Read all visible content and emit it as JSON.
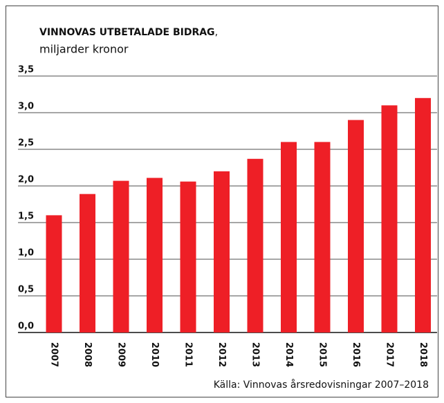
{
  "chart_data": {
    "type": "bar",
    "title": "VINNOVAS UTBETALADE BIDRAG",
    "title_punctuation": ",",
    "subtitle": "miljarder kronor",
    "source": "Källa: Vinnovas årsredovisningar 2007–2018",
    "categories": [
      "2007",
      "2008",
      "2009",
      "2010",
      "2011",
      "2012",
      "2013",
      "2014",
      "2015",
      "2016",
      "2017",
      "2018"
    ],
    "values": [
      1.6,
      1.89,
      2.07,
      2.11,
      2.06,
      2.2,
      2.37,
      2.6,
      2.6,
      2.9,
      3.1,
      3.2
    ],
    "color": "#ee1f26",
    "ylim": [
      0,
      3.5
    ],
    "yticks": [
      {
        "value": 0,
        "label": "0,0"
      },
      {
        "value": 0.5,
        "label": "0,5"
      },
      {
        "value": 1,
        "label": "1,0"
      },
      {
        "value": 1.5,
        "label": "1,5"
      },
      {
        "value": 2,
        "label": "2,0"
      },
      {
        "value": 2.5,
        "label": "2,5"
      },
      {
        "value": 3,
        "label": "3,0"
      },
      {
        "value": 3.5,
        "label": "3,5"
      }
    ],
    "grid": true
  }
}
